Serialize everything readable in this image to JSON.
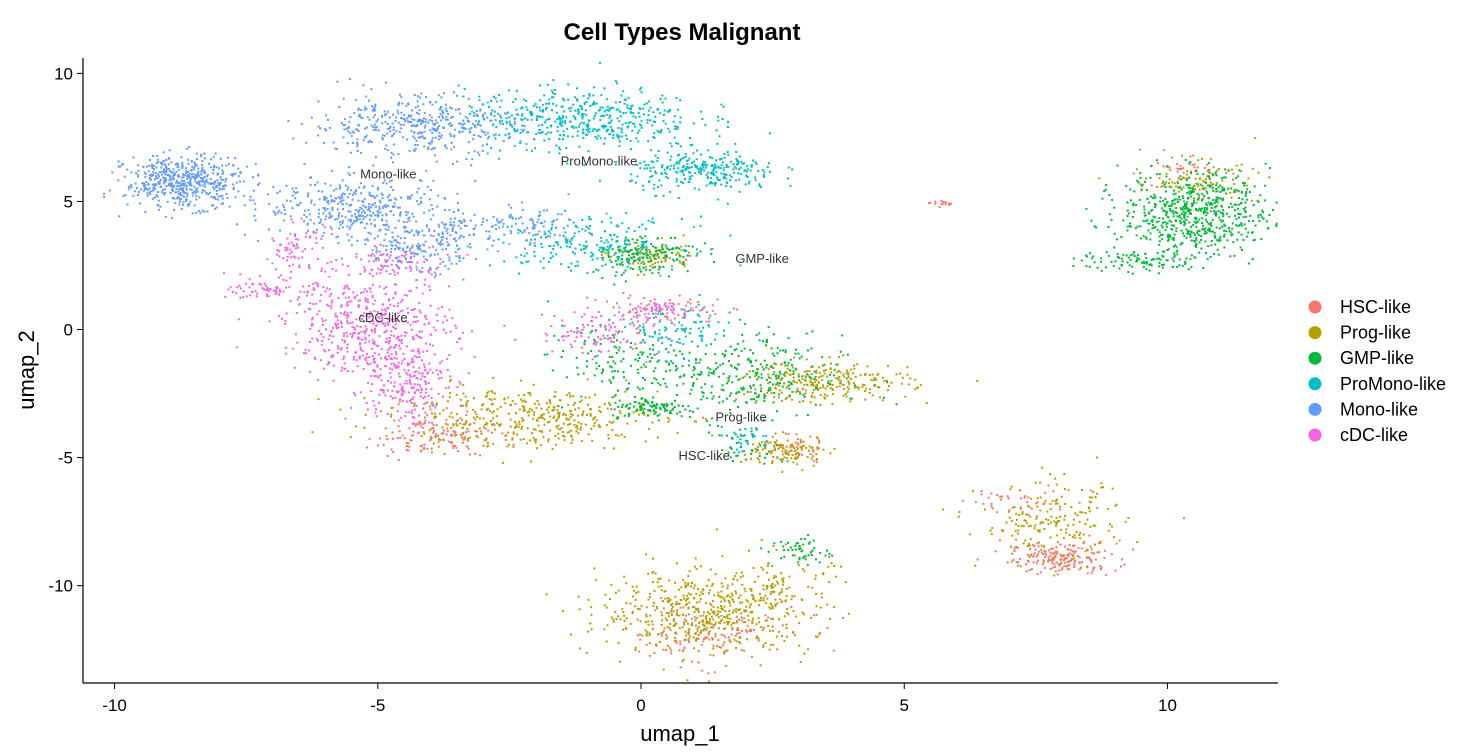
{
  "chart_data": {
    "type": "scatter",
    "title": "Cell Types Malignant",
    "xlabel": "umap_1",
    "ylabel": "umap_2",
    "xlim": [
      -10.6,
      12.1
    ],
    "ylim": [
      -13.8,
      10.6
    ],
    "xticks": [
      -10,
      -5,
      0,
      5,
      10
    ],
    "xtick_labels": [
      "-10",
      "-5",
      "0",
      "5",
      "10"
    ],
    "yticks": [
      10,
      5,
      0,
      -5,
      -10
    ],
    "ytick_labels": [
      "10",
      "5",
      "0",
      "-5",
      "-10"
    ],
    "grid": false,
    "legend_position": "right",
    "series": [
      {
        "name": "HSC-like",
        "color": "#F8766D",
        "clusters": [
          {
            "cx": 8.0,
            "cy": -8.9,
            "sx": 0.5,
            "sy": 0.3,
            "n": 180
          },
          {
            "cx": 7.3,
            "cy": -6.6,
            "sx": 0.6,
            "sy": 0.3,
            "n": 40
          },
          {
            "cx": -4.0,
            "cy": -4.1,
            "sx": 0.6,
            "sy": 0.4,
            "n": 140
          },
          {
            "cx": 1.2,
            "cy": -11.8,
            "sx": 0.9,
            "sy": 0.6,
            "n": 130
          },
          {
            "cx": 0.5,
            "cy": 0.8,
            "sx": 0.5,
            "sy": 0.3,
            "n": 60
          },
          {
            "cx": 2.9,
            "cy": -4.6,
            "sx": 0.3,
            "sy": 0.3,
            "n": 40
          },
          {
            "cx": 5.8,
            "cy": 4.95,
            "sx": 0.15,
            "sy": 0.05,
            "n": 14
          },
          {
            "cx": 10.2,
            "cy": 6.2,
            "sx": 0.5,
            "sy": 0.3,
            "n": 40
          }
        ]
      },
      {
        "name": "Prog-like",
        "color": "#B79F00",
        "clusters": [
          {
            "cx": 1.2,
            "cy": -11.0,
            "sx": 1.0,
            "sy": 0.8,
            "n": 520
          },
          {
            "cx": 7.8,
            "cy": -7.6,
            "sx": 0.7,
            "sy": 0.8,
            "n": 190
          },
          {
            "cx": 3.5,
            "cy": -2.0,
            "sx": 0.8,
            "sy": 0.4,
            "n": 260
          },
          {
            "cx": -2.2,
            "cy": -3.4,
            "sx": 1.3,
            "sy": 0.6,
            "n": 420
          },
          {
            "cx": 2.8,
            "cy": -4.7,
            "sx": 0.4,
            "sy": 0.3,
            "n": 110
          },
          {
            "cx": 2.6,
            "cy": -10.0,
            "sx": 0.5,
            "sy": 0.7,
            "n": 90
          },
          {
            "cx": 0.2,
            "cy": 2.9,
            "sx": 0.4,
            "sy": 0.3,
            "n": 90
          },
          {
            "cx": 10.5,
            "cy": 5.8,
            "sx": 0.6,
            "sy": 0.4,
            "n": 90
          }
        ]
      },
      {
        "name": "GMP-like",
        "color": "#00BA38",
        "clusters": [
          {
            "cx": 10.5,
            "cy": 4.6,
            "sx": 0.7,
            "sy": 0.8,
            "n": 620
          },
          {
            "cx": 9.5,
            "cy": 2.7,
            "sx": 0.6,
            "sy": 0.2,
            "n": 100
          },
          {
            "cx": 1.8,
            "cy": -1.8,
            "sx": 1.0,
            "sy": 0.8,
            "n": 320
          },
          {
            "cx": 0.2,
            "cy": -3.0,
            "sx": 0.4,
            "sy": 0.2,
            "n": 100
          },
          {
            "cx": 0.0,
            "cy": 3.0,
            "sx": 0.5,
            "sy": 0.4,
            "n": 170
          },
          {
            "cx": 2.0,
            "cy": -4.6,
            "sx": 0.3,
            "sy": 0.4,
            "n": 40
          },
          {
            "cx": 3.0,
            "cy": -8.6,
            "sx": 0.3,
            "sy": 0.3,
            "n": 50
          },
          {
            "cx": -0.6,
            "cy": -1.0,
            "sx": 0.6,
            "sy": 0.6,
            "n": 100
          }
        ]
      },
      {
        "name": "ProMono-like",
        "color": "#00BFC4",
        "clusters": [
          {
            "cx": -1.2,
            "cy": 8.3,
            "sx": 1.1,
            "sy": 0.6,
            "n": 480
          },
          {
            "cx": 1.2,
            "cy": 6.2,
            "sx": 0.7,
            "sy": 0.4,
            "n": 280
          },
          {
            "cx": -1.0,
            "cy": 3.4,
            "sx": 0.9,
            "sy": 0.5,
            "n": 200
          },
          {
            "cx": 0.6,
            "cy": 0.0,
            "sx": 0.6,
            "sy": 0.5,
            "n": 100
          },
          {
            "cx": 2.0,
            "cy": -4.2,
            "sx": 0.3,
            "sy": 0.3,
            "n": 30
          }
        ]
      },
      {
        "name": "Mono-like",
        "color": "#619CFF",
        "clusters": [
          {
            "cx": -8.7,
            "cy": 5.8,
            "sx": 0.55,
            "sy": 0.5,
            "n": 520
          },
          {
            "cx": -4.3,
            "cy": 8.0,
            "sx": 1.0,
            "sy": 0.6,
            "n": 420
          },
          {
            "cx": -5.4,
            "cy": 4.8,
            "sx": 0.9,
            "sy": 0.6,
            "n": 380
          },
          {
            "cx": -4.3,
            "cy": 3.2,
            "sx": 0.5,
            "sy": 0.5,
            "n": 180
          },
          {
            "cx": -2.6,
            "cy": 4.0,
            "sx": 1.0,
            "sy": 0.4,
            "n": 150
          }
        ]
      },
      {
        "name": "cDC-like",
        "color": "#F564E3",
        "clusters": [
          {
            "cx": -5.2,
            "cy": 0.2,
            "sx": 0.8,
            "sy": 0.9,
            "n": 480
          },
          {
            "cx": -4.5,
            "cy": -2.0,
            "sx": 0.4,
            "sy": 0.8,
            "n": 220
          },
          {
            "cx": -7.0,
            "cy": 1.6,
            "sx": 0.4,
            "sy": 0.2,
            "n": 70
          },
          {
            "cx": -6.6,
            "cy": 3.2,
            "sx": 0.3,
            "sy": 0.5,
            "n": 70
          },
          {
            "cx": -4.7,
            "cy": 2.6,
            "sx": 0.5,
            "sy": 0.4,
            "n": 80
          },
          {
            "cx": -0.8,
            "cy": 0.0,
            "sx": 0.6,
            "sy": 0.5,
            "n": 110
          },
          {
            "cx": 0.3,
            "cy": 0.8,
            "sx": 0.4,
            "sy": 0.2,
            "n": 60
          }
        ]
      }
    ],
    "annotations": [
      {
        "text": "ProMono-like",
        "x": -0.8,
        "y": 6.4
      },
      {
        "text": "Mono-like",
        "x": -4.8,
        "y": 5.9
      },
      {
        "text": "GMP-like",
        "x": 2.3,
        "y": 2.6
      },
      {
        "text": "cDC-like",
        "x": -4.9,
        "y": 0.3
      },
      {
        "text": "Prog-like",
        "x": 1.9,
        "y": -3.6
      },
      {
        "text": "HSC-like",
        "x": 1.2,
        "y": -5.1
      }
    ]
  }
}
